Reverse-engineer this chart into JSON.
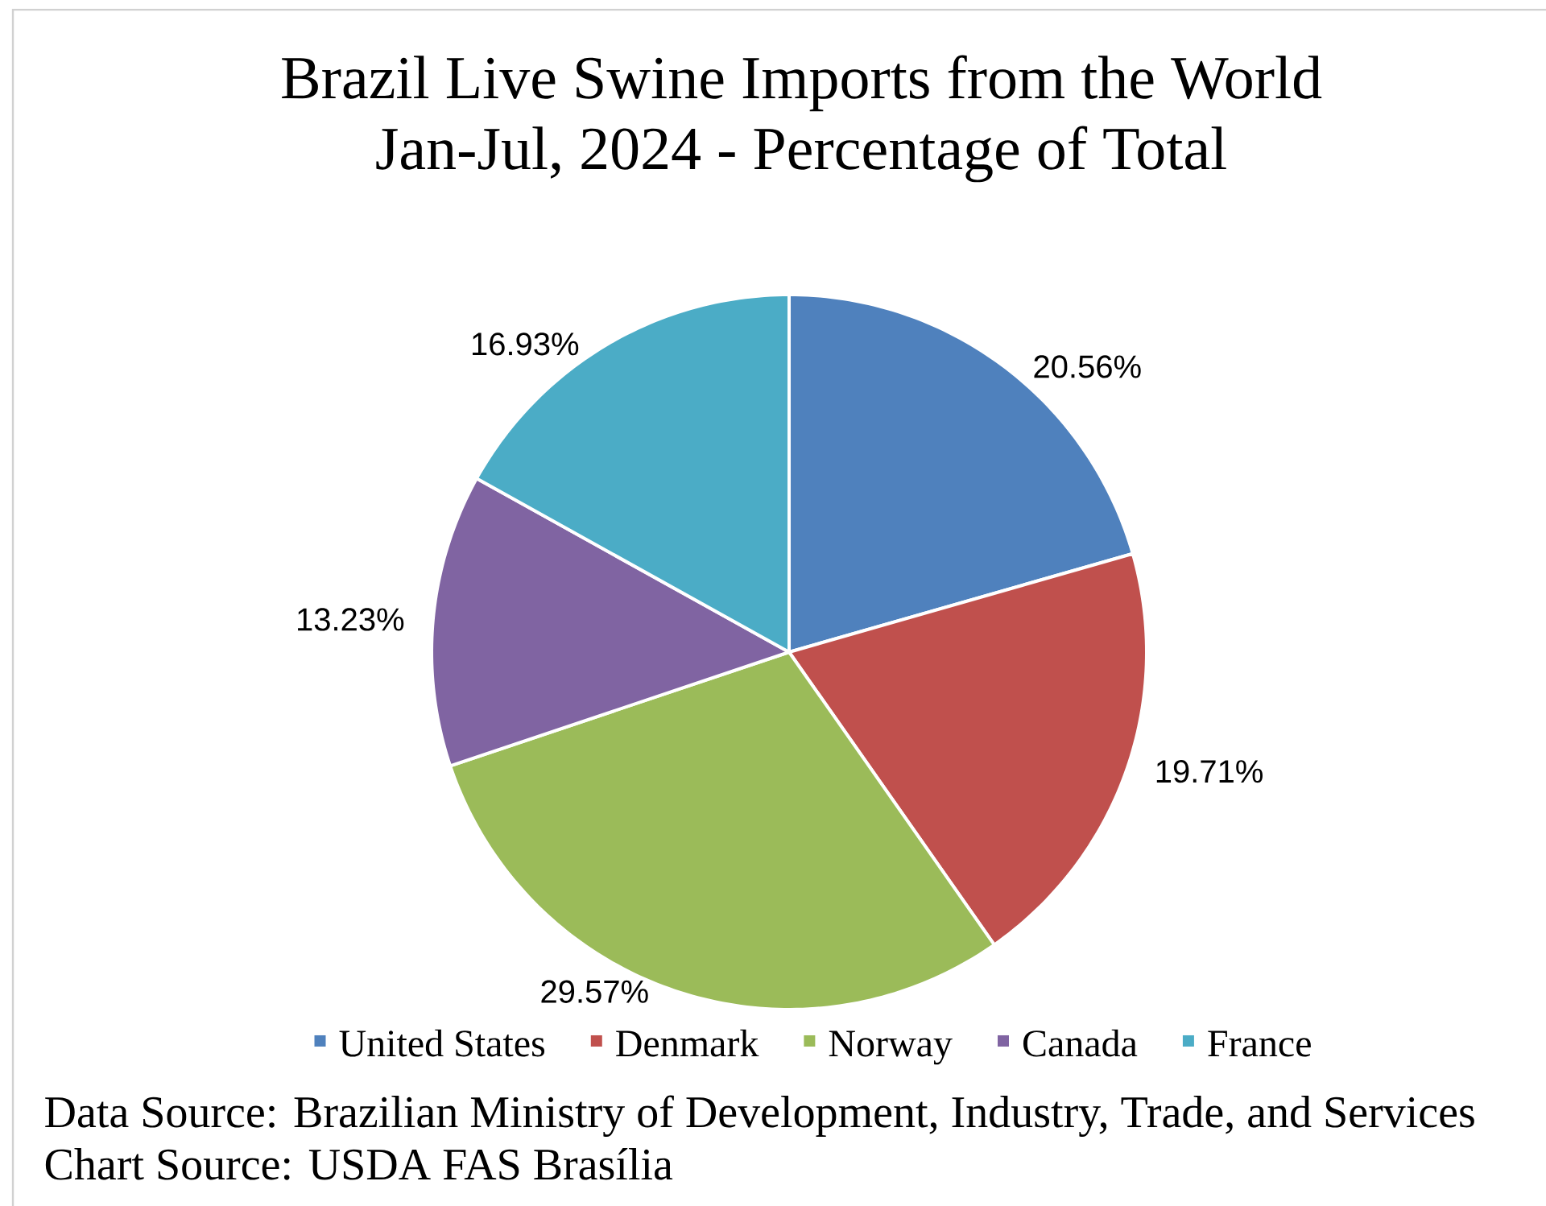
{
  "chart_data": {
    "type": "pie",
    "title": "Brazil Live Swine Imports from the World",
    "subtitle": "Jan-Jul, 2024 - Percentage of Total",
    "categories": [
      "United States",
      "Denmark",
      "Norway",
      "Canada",
      "France"
    ],
    "values": [
      20.56,
      19.71,
      29.57,
      13.23,
      16.93
    ],
    "colors": [
      "#4f81bd",
      "#c0504d",
      "#9bbb59",
      "#8064a2",
      "#4bacc6"
    ],
    "value_labels": [
      "20.56%",
      "19.71%",
      "29.57%",
      "13.23%",
      "16.93%"
    ],
    "legend": "bottom",
    "annotations": [
      "Data Source: Brazilian Ministry of Development, Industry, Trade, and Services",
      "Chart Source: USDA FAS Brasília"
    ]
  }
}
